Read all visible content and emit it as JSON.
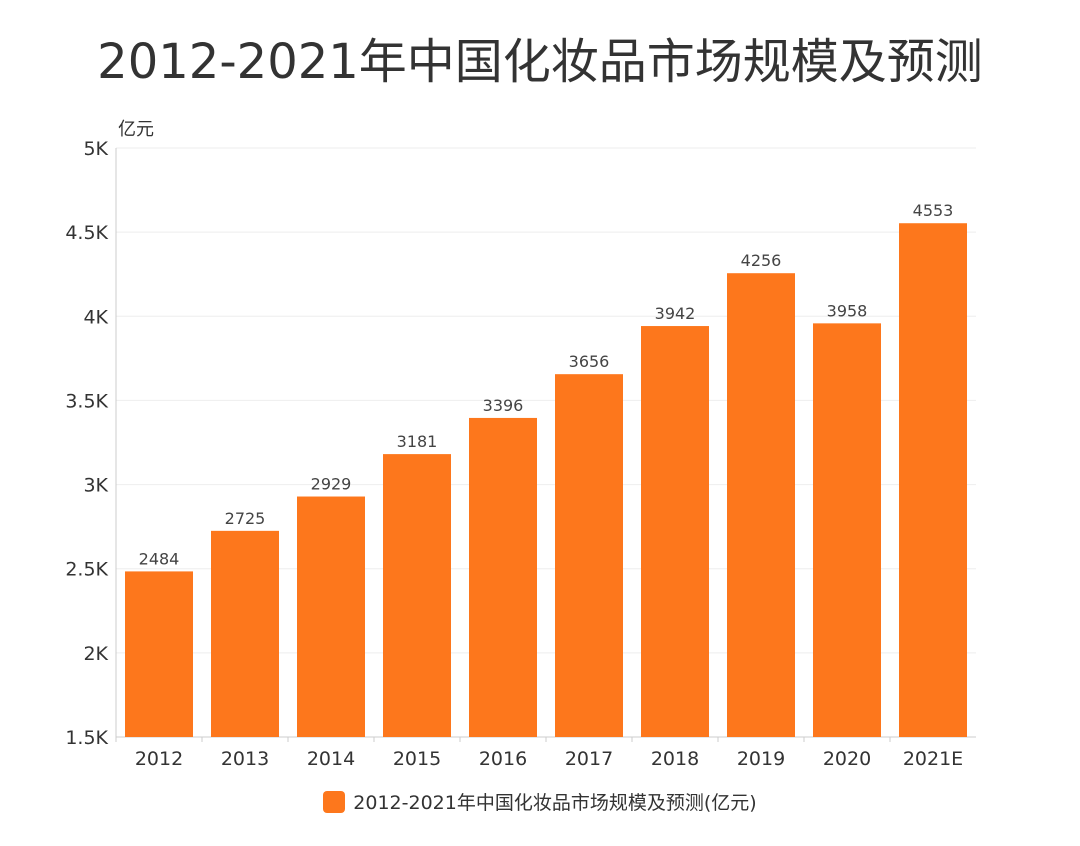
{
  "chart_data": {
    "type": "bar",
    "title": "2012-2021年中国化妆品市场规模及预测",
    "ylabel": "亿元",
    "xlabel": "",
    "categories": [
      "2012",
      "2013",
      "2014",
      "2015",
      "2016",
      "2017",
      "2018",
      "2019",
      "2020",
      "2021E"
    ],
    "series": [
      {
        "name": "2012-2021年中国化妆品市场规模及预测(亿元)",
        "values": [
          2484,
          2725,
          2929,
          3181,
          3396,
          3656,
          3942,
          4256,
          3958,
          4553
        ],
        "color": "#FD771C"
      }
    ],
    "ylim": [
      1500,
      5000
    ],
    "yticks": [
      1500,
      2000,
      2500,
      3000,
      3500,
      4000,
      4500,
      5000
    ],
    "ytick_labels": [
      "1.5K",
      "2K",
      "2.5K",
      "3K",
      "3.5K",
      "4K",
      "4.5K",
      "5K"
    ],
    "data_labels": [
      "2484",
      "2725",
      "2929",
      "3181",
      "3396",
      "3656",
      "3942",
      "4256",
      "3958",
      "4553"
    ],
    "grid": true,
    "legend_position": "bottom-center",
    "gridline_color": "#EEEEEE",
    "axis_color": "#CCCCCC"
  }
}
